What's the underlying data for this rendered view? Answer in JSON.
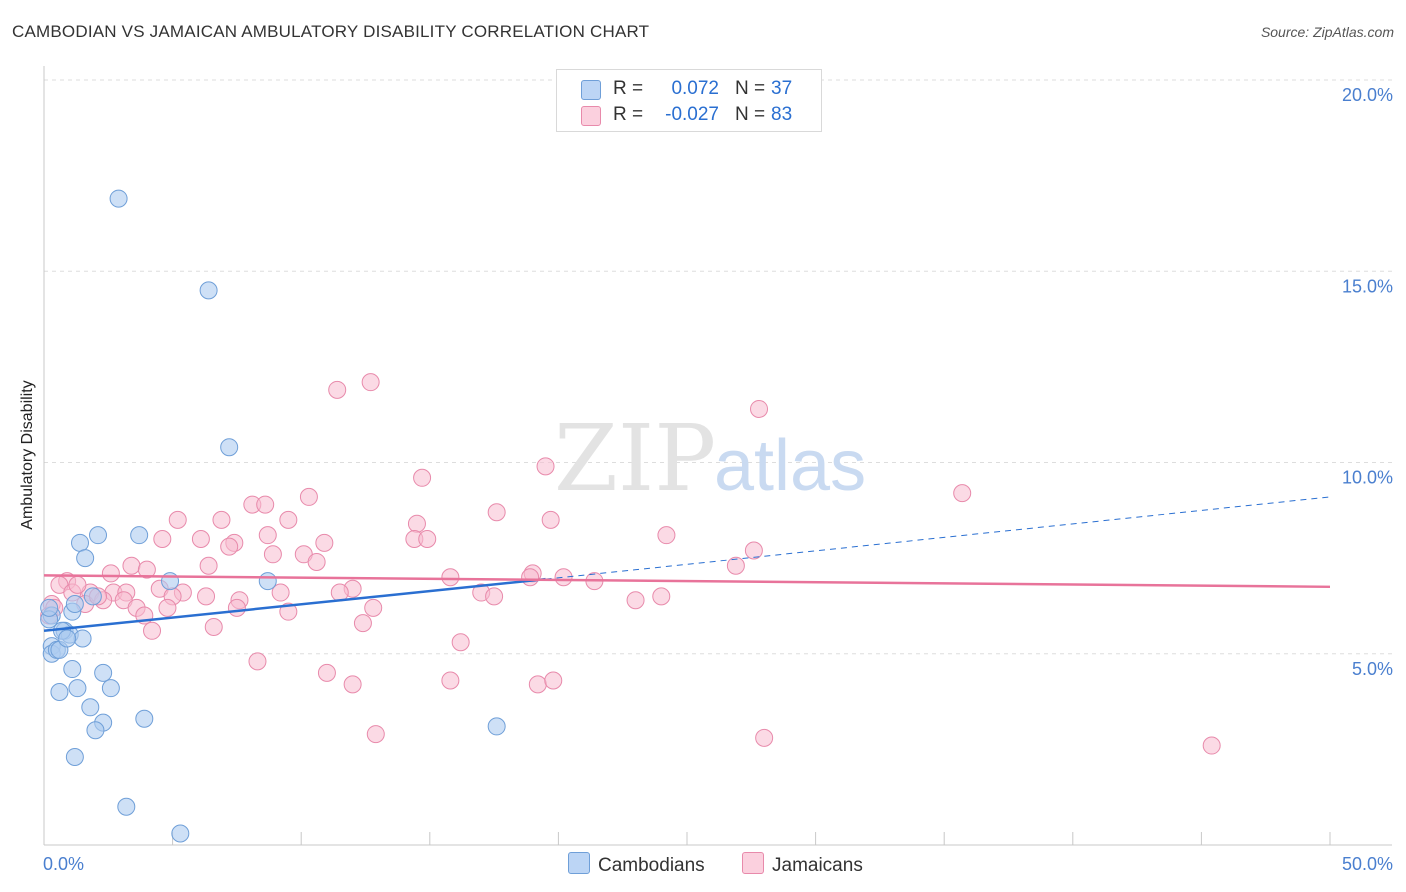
{
  "header": {
    "title": "CAMBODIAN VS JAMAICAN AMBULATORY DISABILITY CORRELATION CHART",
    "source": "Source: ZipAtlas.com"
  },
  "watermark": {
    "zip": "ZIP",
    "atlas": "atlas"
  },
  "legend": {
    "rows": [
      {
        "r_label": "R =",
        "r_value": "0.072",
        "n_label": "N =",
        "n_value": "37",
        "color": "#aecbf0"
      },
      {
        "r_label": "R =",
        "r_value": "-0.027",
        "n_label": "N =",
        "n_value": "83",
        "color": "#f7bcd0"
      }
    ]
  },
  "bottom_legend": {
    "series1": "Cambodians",
    "series2": "Jamaicans"
  },
  "colors": {
    "blue_fill": "#aecbf0",
    "blue_stroke": "#6f9fd8",
    "blue_line": "#2a6fd1",
    "pink_fill": "#f7bcd0",
    "pink_stroke": "#e88aab",
    "pink_line": "#e8739a",
    "axis_text": "#4a7fcf",
    "grid": "#dddddd"
  },
  "chart_data": {
    "type": "scatter",
    "title": "CAMBODIAN VS JAMAICAN AMBULATORY DISABILITY CORRELATION CHART",
    "xlabel": "",
    "ylabel": "Ambulatory Disability",
    "xlim": [
      0,
      50
    ],
    "ylim": [
      0,
      20
    ],
    "x_tick_labels": [
      "0.0%",
      "50.0%"
    ],
    "y_ticks": [
      5,
      10,
      15,
      20
    ],
    "y_tick_labels": [
      "5.0%",
      "10.0%",
      "15.0%",
      "20.0%"
    ],
    "grid": true,
    "legend_position": "top-center",
    "series": [
      {
        "name": "Cambodians",
        "r": 0.072,
        "n": 37,
        "trend": {
          "x0": 0,
          "y0": 5.6,
          "x1": 19.5,
          "y1": 6.95,
          "dashed_to_x": 50,
          "dashed_to_y": 9.1
        },
        "points": [
          [
            2.9,
            16.9
          ],
          [
            6.4,
            14.5
          ],
          [
            7.2,
            10.4
          ],
          [
            1.4,
            7.9
          ],
          [
            2.1,
            8.1
          ],
          [
            3.7,
            8.1
          ],
          [
            1.6,
            7.5
          ],
          [
            4.9,
            6.9
          ],
          [
            8.7,
            6.9
          ],
          [
            1.9,
            6.5
          ],
          [
            1.1,
            6.1
          ],
          [
            0.3,
            6.0
          ],
          [
            0.8,
            5.6
          ],
          [
            1.0,
            5.5
          ],
          [
            0.7,
            5.6
          ],
          [
            0.3,
            5.2
          ],
          [
            0.3,
            5.0
          ],
          [
            0.5,
            5.1
          ],
          [
            0.6,
            5.1
          ],
          [
            1.5,
            5.4
          ],
          [
            1.1,
            4.6
          ],
          [
            2.3,
            4.5
          ],
          [
            0.6,
            4.0
          ],
          [
            1.3,
            4.1
          ],
          [
            2.6,
            4.1
          ],
          [
            1.8,
            3.6
          ],
          [
            3.9,
            3.3
          ],
          [
            2.3,
            3.2
          ],
          [
            2.0,
            3.0
          ],
          [
            17.6,
            3.1
          ],
          [
            1.2,
            2.3
          ],
          [
            3.2,
            1.0
          ],
          [
            5.3,
            0.3
          ],
          [
            0.2,
            5.9
          ],
          [
            1.2,
            6.3
          ],
          [
            0.2,
            6.2
          ],
          [
            0.9,
            5.4
          ]
        ]
      },
      {
        "name": "Jamaicans",
        "r": -0.027,
        "n": 83,
        "trend": {
          "x0": 0,
          "y0": 7.05,
          "x1": 50,
          "y1": 6.75
        },
        "points": [
          [
            12.7,
            12.1
          ],
          [
            11.4,
            11.9
          ],
          [
            27.8,
            11.4
          ],
          [
            14.7,
            9.6
          ],
          [
            19.5,
            9.9
          ],
          [
            35.7,
            9.2
          ],
          [
            10.3,
            9.1
          ],
          [
            8.1,
            8.9
          ],
          [
            8.6,
            8.9
          ],
          [
            5.2,
            8.5
          ],
          [
            6.9,
            8.5
          ],
          [
            9.5,
            8.5
          ],
          [
            17.6,
            8.7
          ],
          [
            14.5,
            8.4
          ],
          [
            19.7,
            8.5
          ],
          [
            4.6,
            8.0
          ],
          [
            6.1,
            8.0
          ],
          [
            7.4,
            7.9
          ],
          [
            8.7,
            8.1
          ],
          [
            10.9,
            7.9
          ],
          [
            14.4,
            8.0
          ],
          [
            14.9,
            8.0
          ],
          [
            24.2,
            8.1
          ],
          [
            7.2,
            7.8
          ],
          [
            8.9,
            7.6
          ],
          [
            10.1,
            7.6
          ],
          [
            10.6,
            7.4
          ],
          [
            27.6,
            7.7
          ],
          [
            3.4,
            7.3
          ],
          [
            4.0,
            7.2
          ],
          [
            6.4,
            7.3
          ],
          [
            26.9,
            7.3
          ],
          [
            2.6,
            7.1
          ],
          [
            15.8,
            7.0
          ],
          [
            19.0,
            7.1
          ],
          [
            20.2,
            7.0
          ],
          [
            18.9,
            7.0
          ],
          [
            21.4,
            6.9
          ],
          [
            0.9,
            6.9
          ],
          [
            0.6,
            6.8
          ],
          [
            1.1,
            6.6
          ],
          [
            1.8,
            6.6
          ],
          [
            2.7,
            6.6
          ],
          [
            3.2,
            6.6
          ],
          [
            4.5,
            6.7
          ],
          [
            5.4,
            6.6
          ],
          [
            12.0,
            6.7
          ],
          [
            11.5,
            6.6
          ],
          [
            17.0,
            6.6
          ],
          [
            6.3,
            6.5
          ],
          [
            9.2,
            6.6
          ],
          [
            24.0,
            6.5
          ],
          [
            2.3,
            6.4
          ],
          [
            3.1,
            6.4
          ],
          [
            5.0,
            6.5
          ],
          [
            7.6,
            6.4
          ],
          [
            17.5,
            6.5
          ],
          [
            23.0,
            6.4
          ],
          [
            0.3,
            6.3
          ],
          [
            1.6,
            6.3
          ],
          [
            2.1,
            6.5
          ],
          [
            0.2,
            6.0
          ],
          [
            3.6,
            6.2
          ],
          [
            4.8,
            6.2
          ],
          [
            7.5,
            6.2
          ],
          [
            9.5,
            6.1
          ],
          [
            12.8,
            6.2
          ],
          [
            3.9,
            6.0
          ],
          [
            6.6,
            5.7
          ],
          [
            4.2,
            5.6
          ],
          [
            12.4,
            5.8
          ],
          [
            16.2,
            5.3
          ],
          [
            8.3,
            4.8
          ],
          [
            11.0,
            4.5
          ],
          [
            12.0,
            4.2
          ],
          [
            15.8,
            4.3
          ],
          [
            19.2,
            4.2
          ],
          [
            19.8,
            4.3
          ],
          [
            12.9,
            2.9
          ],
          [
            28.0,
            2.8
          ],
          [
            45.4,
            2.6
          ],
          [
            0.4,
            6.2
          ],
          [
            1.3,
            6.8
          ]
        ]
      }
    ]
  }
}
